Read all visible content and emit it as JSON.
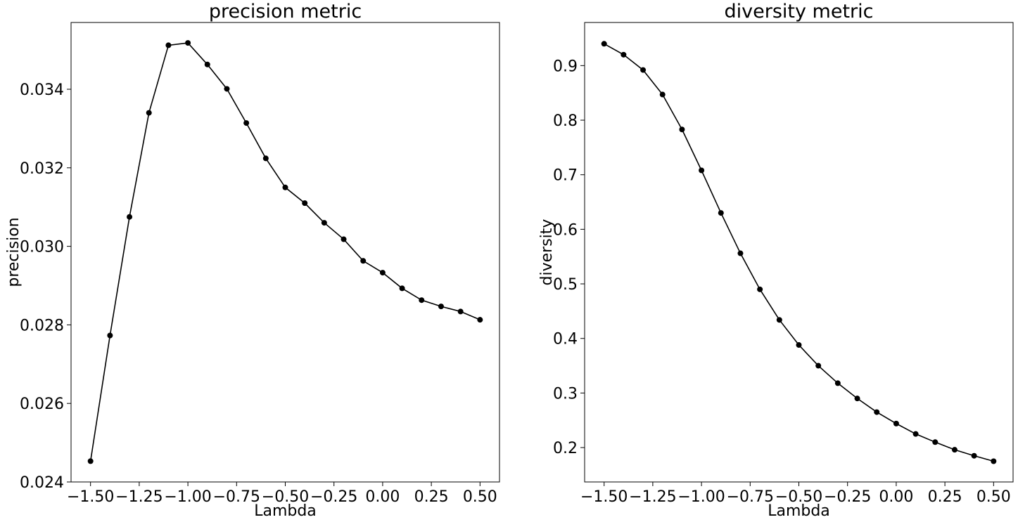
{
  "chart_data": [
    {
      "type": "line",
      "title": "precision metric",
      "xlabel": "Lambda",
      "ylabel": "precision",
      "xlim": [
        -1.6,
        0.6
      ],
      "ylim": [
        0.024,
        0.0357
      ],
      "xticks": [
        -1.5,
        -1.25,
        -1.0,
        -0.75,
        -0.5,
        -0.25,
        0.0,
        0.25,
        0.5
      ],
      "xtick_labels": [
        "−1.50",
        "−1.25",
        "−1.00",
        "−0.75",
        "−0.50",
        "−0.25",
        "0.00",
        "0.25",
        "0.50"
      ],
      "yticks": [
        0.024,
        0.026,
        0.028,
        0.03,
        0.032,
        0.034
      ],
      "ytick_labels": [
        "0.024",
        "0.026",
        "0.028",
        "0.030",
        "0.032",
        "0.034"
      ],
      "grid": false,
      "color": "#000000",
      "x": [
        -1.5,
        -1.4,
        -1.3,
        -1.2,
        -1.1,
        -1.0,
        -0.9,
        -0.8,
        -0.7,
        -0.6,
        -0.5,
        -0.4,
        -0.3,
        -0.2,
        -0.1,
        0.0,
        0.1,
        0.2,
        0.3,
        0.4,
        0.5
      ],
      "y": [
        0.02453,
        0.02773,
        0.03075,
        0.0334,
        0.03512,
        0.03518,
        0.03463,
        0.03401,
        0.03314,
        0.03224,
        0.0315,
        0.0311,
        0.0306,
        0.03018,
        0.02963,
        0.02933,
        0.02893,
        0.02863,
        0.02847,
        0.02834,
        0.02813
      ]
    },
    {
      "type": "line",
      "title": "diversity metric",
      "xlabel": "Lambda",
      "ylabel": "diversity",
      "xlim": [
        -1.6,
        0.6
      ],
      "ylim": [
        0.137,
        0.979
      ],
      "xticks": [
        -1.5,
        -1.25,
        -1.0,
        -0.75,
        -0.5,
        -0.25,
        0.0,
        0.25,
        0.5
      ],
      "xtick_labels": [
        "−1.50",
        "−1.25",
        "−1.00",
        "−0.75",
        "−0.50",
        "−0.25",
        "0.00",
        "0.25",
        "0.50"
      ],
      "yticks": [
        0.2,
        0.3,
        0.4,
        0.5,
        0.6,
        0.7,
        0.8,
        0.9
      ],
      "ytick_labels": [
        "0.2",
        "0.3",
        "0.4",
        "0.5",
        "0.6",
        "0.7",
        "0.8",
        "0.9"
      ],
      "grid": false,
      "color": "#000000",
      "x": [
        -1.5,
        -1.4,
        -1.3,
        -1.2,
        -1.1,
        -1.0,
        -0.9,
        -0.8,
        -0.7,
        -0.6,
        -0.5,
        -0.4,
        -0.3,
        -0.2,
        -0.1,
        0.0,
        0.1,
        0.2,
        0.3,
        0.4,
        0.5
      ],
      "y": [
        0.94,
        0.92,
        0.892,
        0.847,
        0.783,
        0.708,
        0.63,
        0.556,
        0.49,
        0.434,
        0.388,
        0.35,
        0.318,
        0.29,
        0.265,
        0.244,
        0.225,
        0.21,
        0.196,
        0.185,
        0.175
      ]
    }
  ]
}
